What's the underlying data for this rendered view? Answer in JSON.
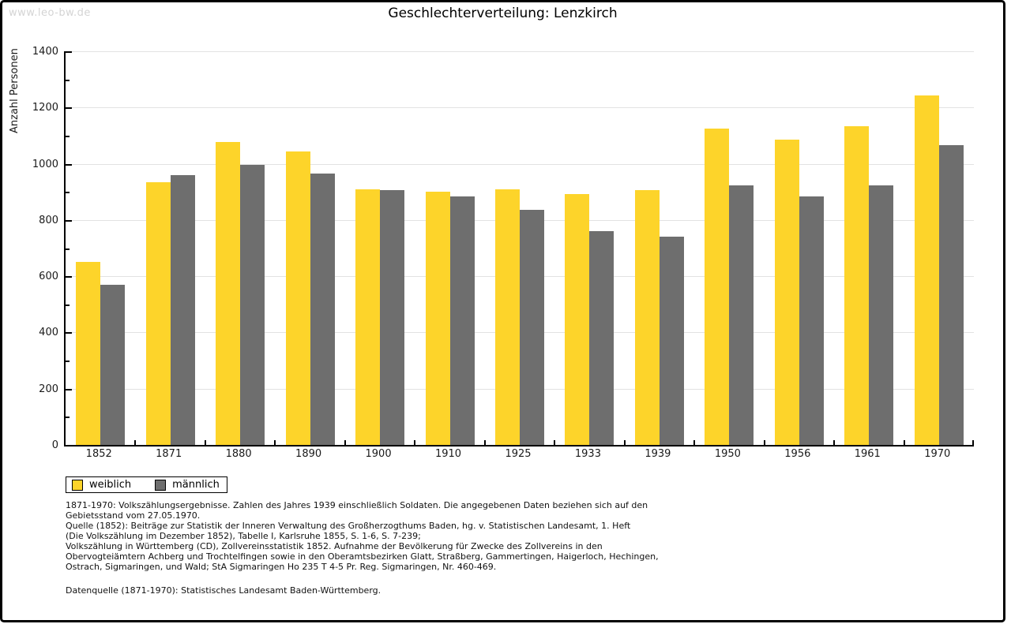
{
  "page": {
    "watermark": "www.leo-bw.de",
    "title": "Geschlechterverteilung: Lenzkirch"
  },
  "chart_data": {
    "type": "bar",
    "title": "Geschlechterverteilung: Lenzkirch",
    "xlabel": "",
    "ylabel": "Anzahl Personen",
    "categories": [
      "1852",
      "1871",
      "1880",
      "1890",
      "1900",
      "1910",
      "1925",
      "1933",
      "1939",
      "1950",
      "1956",
      "1961",
      "1970"
    ],
    "series": [
      {
        "name": "weiblich",
        "color": "#FDD42A",
        "values": [
          650,
          935,
          1078,
          1045,
          910,
          900,
          908,
          893,
          905,
          1125,
          1085,
          1133,
          1242
        ]
      },
      {
        "name": "männlich",
        "color": "#6E6E6E",
        "values": [
          570,
          960,
          996,
          965,
          905,
          885,
          835,
          760,
          740,
          922,
          883,
          922,
          1067
        ]
      }
    ],
    "ylim": [
      0,
      1400
    ],
    "yticks": [
      0,
      200,
      400,
      600,
      800,
      1000,
      1200,
      1400
    ],
    "ytick_minor_step": 100,
    "grid": "horizontal-major",
    "gridline_color": "#e2e2e2",
    "legend_position": "bottom-left"
  },
  "legend": {
    "items": [
      {
        "label": "weiblich",
        "color": "#FDD42A"
      },
      {
        "label": "männlich",
        "color": "#6E6E6E"
      }
    ]
  },
  "footer": {
    "lines": [
      "1871-1970: Volkszählungsergebnisse. Zahlen des Jahres 1939 einschließlich Soldaten. Die angegebenen Daten beziehen sich auf den",
      "Gebietsstand vom 27.05.1970.",
      "Quelle (1852): Beiträge zur Statistik der Inneren Verwaltung des Großherzogthums Baden, hg. v. Statistischen Landesamt, 1. Heft",
      "(Die Volkszählung im Dezember 1852), Tabelle I, Karlsruhe 1855, S. 1-6, S. 7-239;",
      "Volkszählung in Württemberg (CD), Zollvereinsstatistik 1852. Aufnahme der Bevölkerung für Zwecke des Zollvereins in den",
      "Obervogteiämtern Achberg und Trochtelfingen sowie in den Oberamtsbezirken Glatt, Straßberg, Gammertingen, Haigerloch, Hechingen,",
      "Ostrach, Sigmaringen, und Wald; StA Sigmaringen Ho 235 T 4-5 Pr. Reg. Sigmaringen, Nr. 460-469.",
      "",
      "Datenquelle (1871-1970): Statistisches Landesamt Baden-Württemberg."
    ]
  }
}
